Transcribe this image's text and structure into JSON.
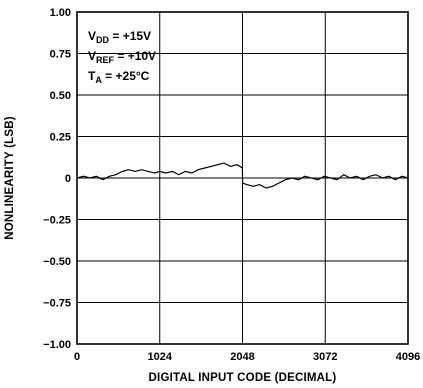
{
  "chart_data": {
    "type": "line",
    "title": "",
    "xlabel": "DIGITAL INPUT CODE (DECIMAL)",
    "ylabel": "NONLINEARITY (LSB)",
    "xlim": [
      0,
      4096
    ],
    "ylim": [
      -1.0,
      1.0
    ],
    "x_ticks": [
      0,
      1024,
      2048,
      3072,
      4096
    ],
    "x_tick_labels": [
      "0",
      "1024",
      "2048",
      "3072",
      "4096"
    ],
    "y_ticks": [
      1.0,
      0.75,
      0.5,
      0.25,
      0,
      -0.25,
      -0.5,
      -0.75,
      -1.0
    ],
    "y_tick_labels": [
      "1.00",
      "0.75",
      "0.50",
      "0.25",
      "0",
      "−0.25",
      "−0.50",
      "−0.75",
      "−1.00"
    ],
    "grid": true,
    "conditions": [
      {
        "base": "V",
        "sub": "DD",
        "rest": " = +15V"
      },
      {
        "base": "V",
        "sub": "REF",
        "rest": " = +10V"
      },
      {
        "base": "T",
        "sub": "A",
        "rest": " = +25°C"
      }
    ],
    "series": [
      {
        "x": [
          0,
          80,
          160,
          240,
          320,
          400,
          480,
          560,
          640,
          720,
          800,
          880,
          960,
          1024,
          1100,
          1180,
          1260,
          1340,
          1420,
          1500,
          1580,
          1660,
          1740,
          1820,
          1900,
          1980,
          2047,
          2049,
          2100,
          2180,
          2260,
          2340,
          2420,
          2500,
          2580,
          2660,
          2740,
          2820,
          2900,
          2980,
          3060,
          3140,
          3220,
          3300,
          3380,
          3460,
          3540,
          3620,
          3700,
          3780,
          3860,
          3940,
          4020,
          4096
        ],
        "y": [
          0.0,
          0.01,
          0.0,
          0.01,
          -0.01,
          0.01,
          0.02,
          0.04,
          0.05,
          0.04,
          0.05,
          0.04,
          0.03,
          0.04,
          0.03,
          0.04,
          0.02,
          0.04,
          0.03,
          0.05,
          0.06,
          0.07,
          0.08,
          0.09,
          0.07,
          0.08,
          0.06,
          -0.03,
          -0.04,
          -0.05,
          -0.04,
          -0.06,
          -0.05,
          -0.03,
          -0.01,
          0.0,
          -0.01,
          0.01,
          0.0,
          -0.01,
          0.01,
          0.0,
          -0.01,
          0.02,
          0.0,
          0.01,
          -0.01,
          0.01,
          0.02,
          0.0,
          0.01,
          -0.01,
          0.01,
          0.0
        ]
      }
    ]
  }
}
